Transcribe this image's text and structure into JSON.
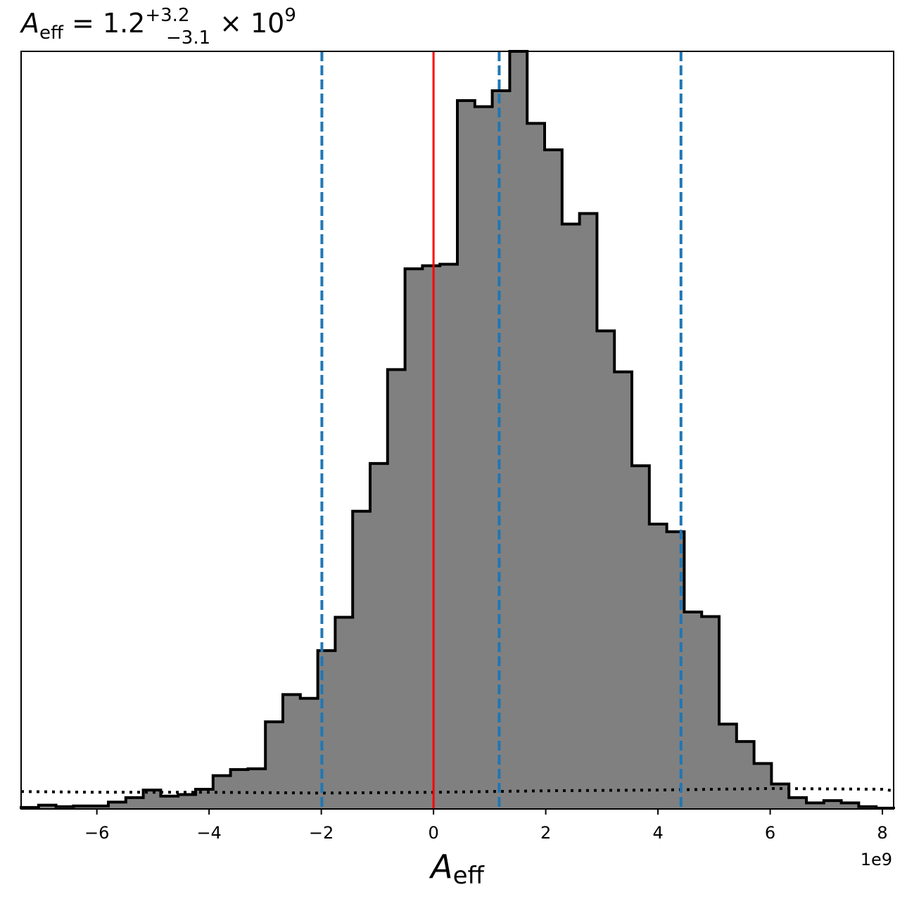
{
  "chart_data": {
    "type": "bar",
    "title": {
      "symbol": "A",
      "symbol_sub": "eff",
      "equals": " = 1.2",
      "sup": "+3.2",
      "sub": "−3.1",
      "times": " × 10",
      "exp": "9"
    },
    "xlabel": {
      "symbol": "A",
      "symbol_sub": "eff"
    },
    "x_offset_label": "1e9",
    "xlim": [
      -7.35,
      8.2
    ],
    "ylim": [
      0,
      1000
    ],
    "xticks": [
      -6,
      -4,
      -2,
      0,
      2,
      4,
      6,
      8
    ],
    "xtick_labels": [
      "−6",
      "−4",
      "−2",
      "0",
      "2",
      "4",
      "6",
      "8"
    ],
    "histogram": {
      "bin_start": -7.35,
      "bin_width": 0.311,
      "counts": [
        2,
        5,
        3,
        4,
        4,
        9,
        15,
        25,
        17,
        19,
        26,
        44,
        52,
        53,
        115,
        151,
        146,
        209,
        253,
        393,
        456,
        580,
        713,
        717,
        719,
        935,
        927,
        948,
        1000,
        905,
        870,
        772,
        786,
        631,
        577,
        453,
        376,
        366,
        260,
        254,
        112,
        89,
        60,
        33,
        15,
        8,
        11,
        8,
        3,
        1
      ],
      "fill_color": "#808080",
      "edge_color": "#000000"
    },
    "truth_line": {
      "x": 0.0,
      "color": "#ff0000"
    },
    "quantile_lines": {
      "x": [
        -1.99,
        1.17,
        4.41
      ],
      "color": "#1f77b4"
    },
    "prior_curve": {
      "x": [
        -7.35,
        -6.0,
        -4.0,
        -2.0,
        0.0,
        2.0,
        4.0,
        6.0,
        8.0,
        8.2
      ],
      "y": [
        23,
        22,
        22,
        21,
        22,
        24,
        25,
        27,
        26,
        24
      ],
      "color": "#000000"
    }
  }
}
